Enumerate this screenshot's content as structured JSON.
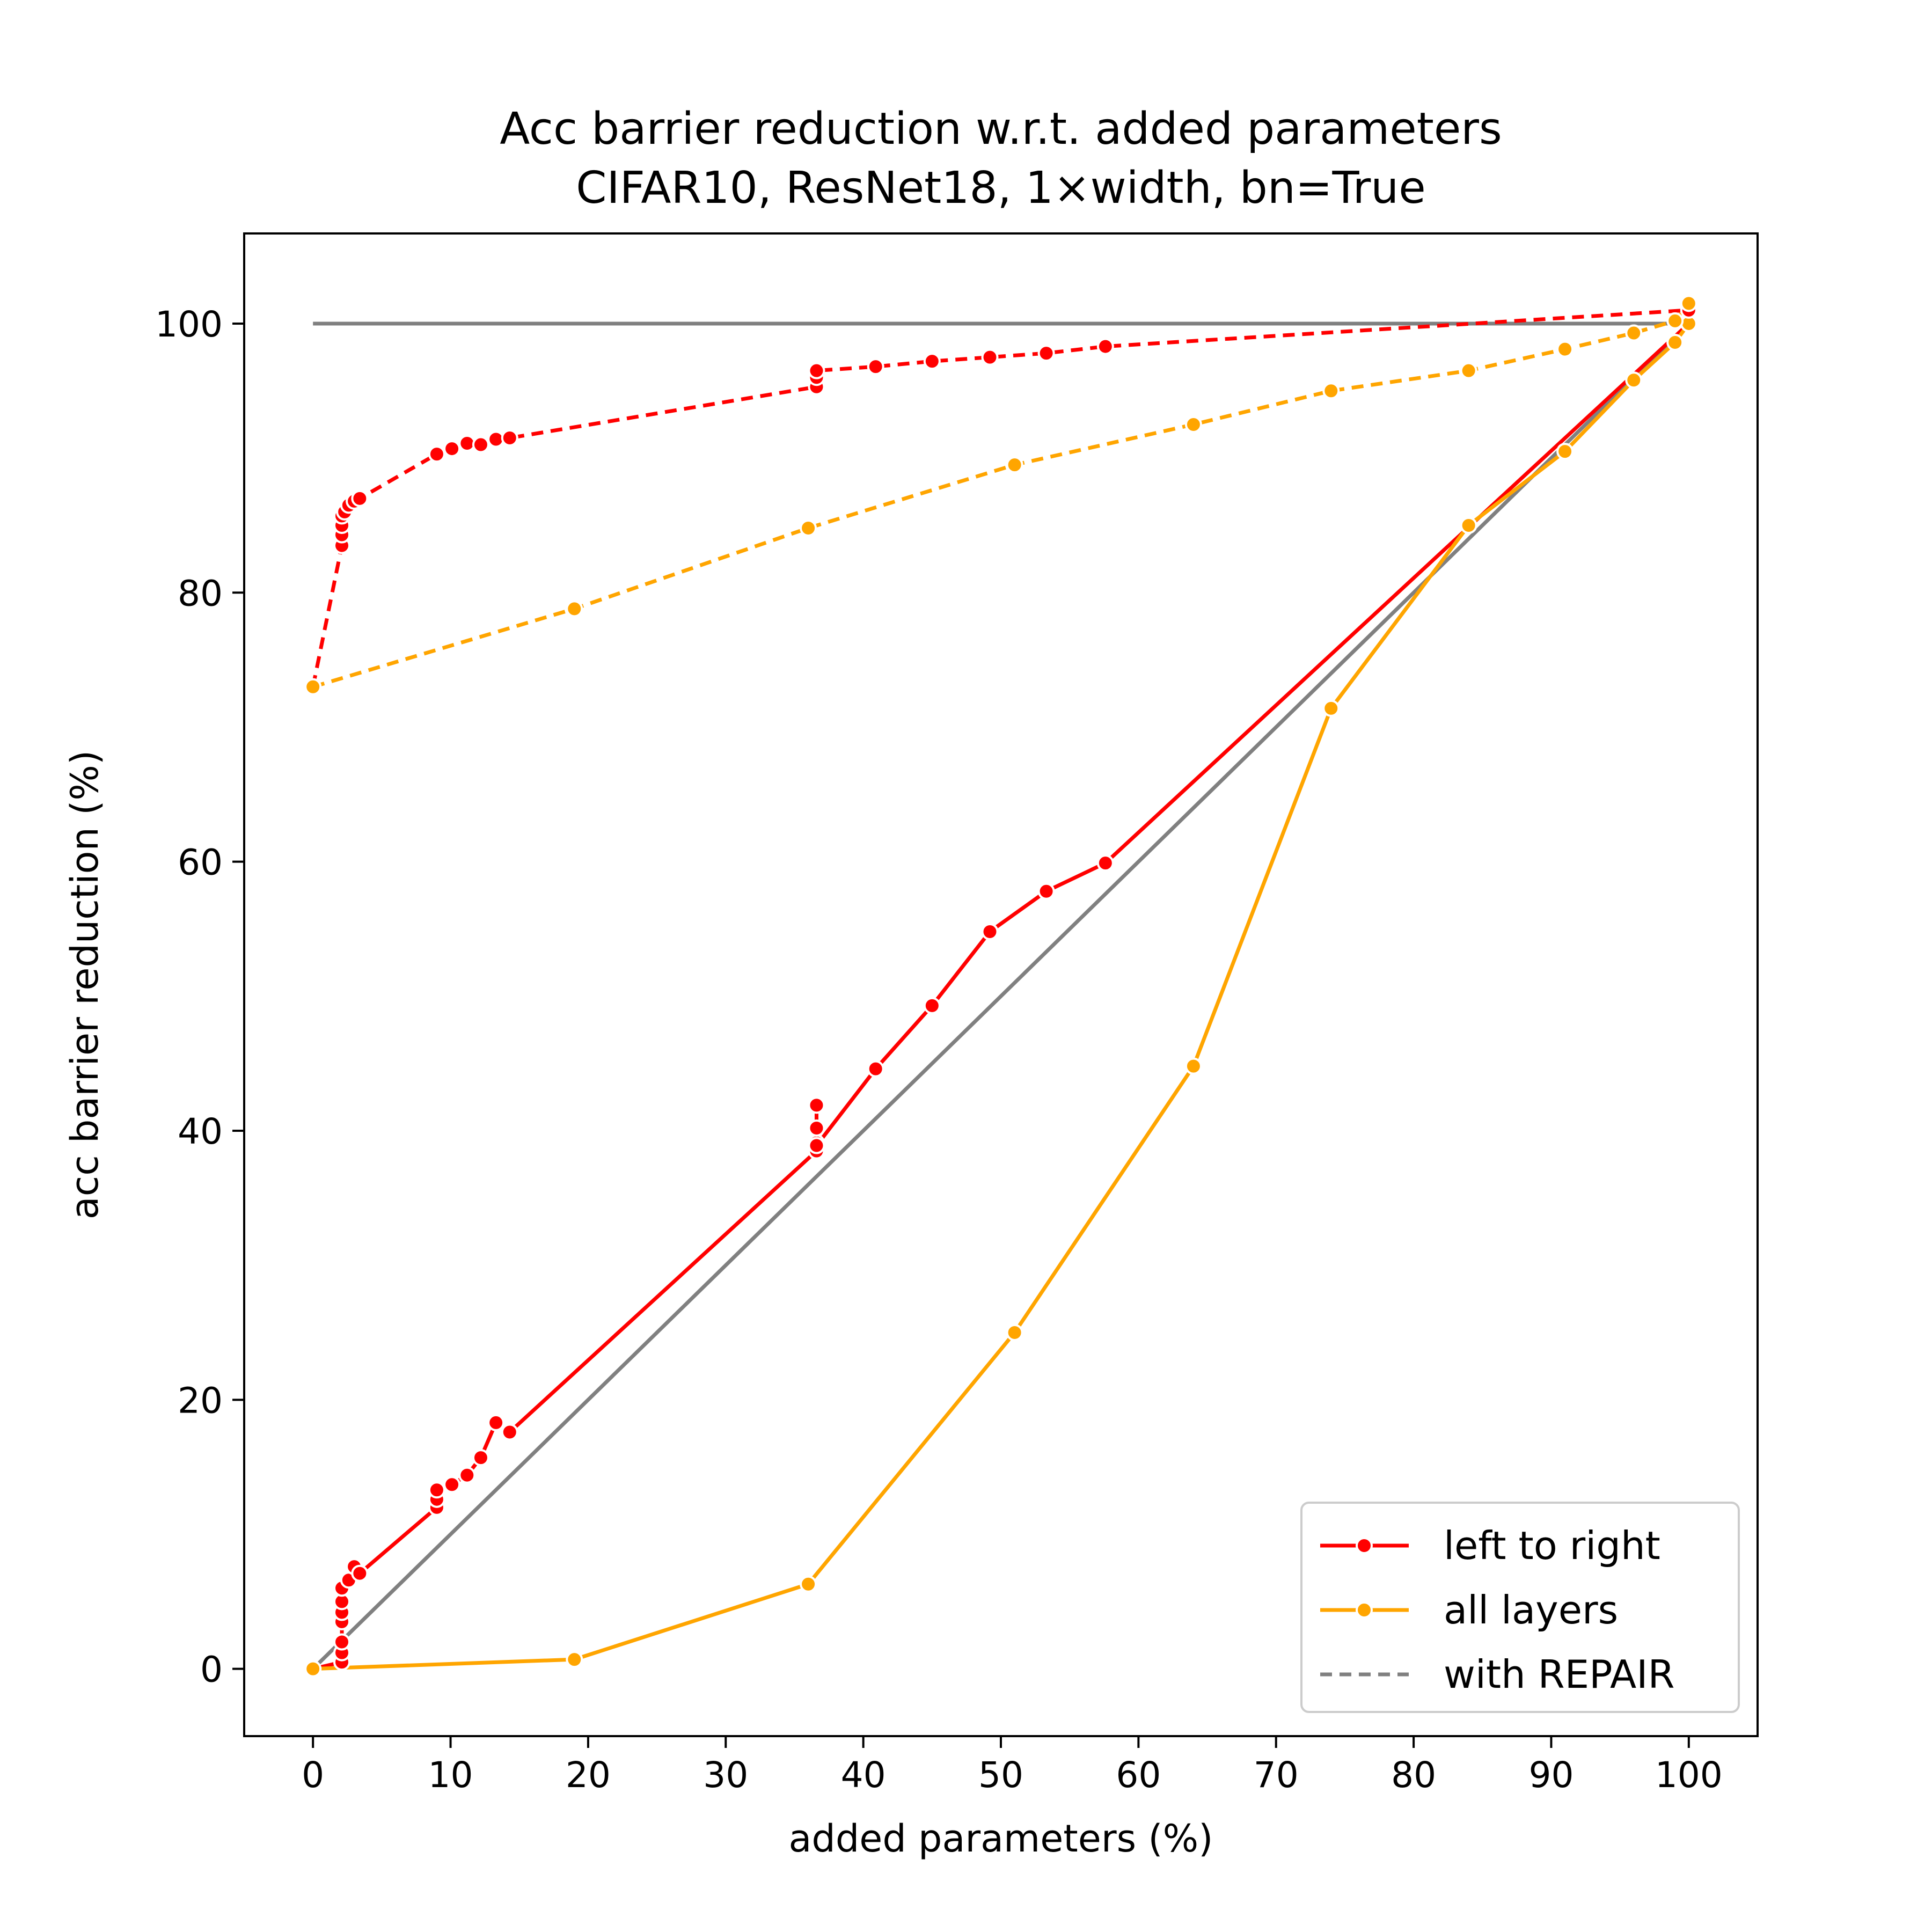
{
  "chart_data": {
    "type": "line",
    "title": "Acc barrier reduction w.r.t. added parameters",
    "subtitle": "CIFAR10, ResNet18, 1×width, bn=True",
    "xlabel": "added parameters (%)",
    "ylabel": "acc barrier reduction (%)",
    "xlim": [
      -5,
      105
    ],
    "ylim": [
      -5,
      106.7
    ],
    "xticks": [
      0,
      10,
      20,
      30,
      40,
      50,
      60,
      70,
      80,
      90,
      100
    ],
    "yticks": [
      0,
      20,
      40,
      60,
      80,
      100
    ],
    "grid": false,
    "legend_position": "lower-right",
    "legend": [
      {
        "label": "left to right",
        "color": "#ff0000",
        "style": "solid",
        "marker": true
      },
      {
        "label": "all layers",
        "color": "#ffa500",
        "style": "solid",
        "marker": true
      },
      {
        "label": "with REPAIR",
        "color": "#808080",
        "style": "dashed",
        "marker": false
      }
    ],
    "reference_lines": [
      {
        "x": [
          0,
          100
        ],
        "y": [
          0,
          100
        ],
        "color": "#808080",
        "style": "solid"
      },
      {
        "x": [
          0,
          100
        ],
        "y": [
          100,
          100
        ],
        "color": "#808080",
        "style": "solid"
      }
    ],
    "series": [
      {
        "name": "left to right",
        "repair": false,
        "color": "#ff0000",
        "style": "solid",
        "x": [
          0,
          2.1,
          2.1,
          2.1,
          2.1,
          2.1,
          2.1,
          2.1,
          2.6,
          3.0,
          3.4,
          9.0,
          9.0,
          9.0,
          10.1,
          11.2,
          12.2,
          13.3,
          14.3,
          36.6,
          36.6,
          36.6,
          36.6,
          36.6,
          40.9,
          45.0,
          49.2,
          53.3,
          57.6,
          100
        ],
        "y": [
          0,
          0.5,
          1.2,
          2.0,
          3.5,
          4.2,
          5.0,
          6.0,
          6.6,
          7.6,
          7.1,
          12.0,
          12.6,
          13.3,
          13.7,
          14.4,
          15.7,
          18.3,
          17.6,
          38.5,
          39.1,
          40.2,
          41.9,
          38.9,
          44.6,
          49.3,
          54.8,
          57.8,
          59.9,
          100
        ]
      },
      {
        "name": "all layers",
        "repair": false,
        "color": "#ffa500",
        "style": "solid",
        "x": [
          0,
          19,
          36,
          51,
          64,
          74,
          84,
          91,
          96,
          99,
          100
        ],
        "y": [
          0,
          0.7,
          6.3,
          25.0,
          44.8,
          71.4,
          85.0,
          90.5,
          95.8,
          98.6,
          100.0
        ]
      },
      {
        "name": "left to right",
        "repair": true,
        "color": "#ff0000",
        "style": "dashed",
        "x": [
          0,
          2.1,
          2.1,
          2.1,
          2.1,
          2.3,
          2.6,
          3.0,
          3.4,
          9.0,
          10.1,
          11.2,
          12.2,
          13.3,
          14.3,
          36.6,
          36.6,
          36.6,
          40.9,
          45.0,
          49.2,
          53.3,
          57.6,
          100
        ],
        "y": [
          73.0,
          83.5,
          84.3,
          85.0,
          85.7,
          86.0,
          86.5,
          86.8,
          87.0,
          90.3,
          90.7,
          91.1,
          91.0,
          91.4,
          91.5,
          95.3,
          96.0,
          96.5,
          96.8,
          97.2,
          97.5,
          97.8,
          98.3,
          101.0
        ]
      },
      {
        "name": "all layers",
        "repair": true,
        "color": "#ffa500",
        "style": "dashed",
        "x": [
          0,
          19,
          36,
          51,
          64,
          74,
          84,
          91,
          96,
          99,
          100
        ],
        "y": [
          73.0,
          78.8,
          84.8,
          89.5,
          92.5,
          95.0,
          96.5,
          98.1,
          99.3,
          100.2,
          101.5
        ]
      }
    ]
  }
}
